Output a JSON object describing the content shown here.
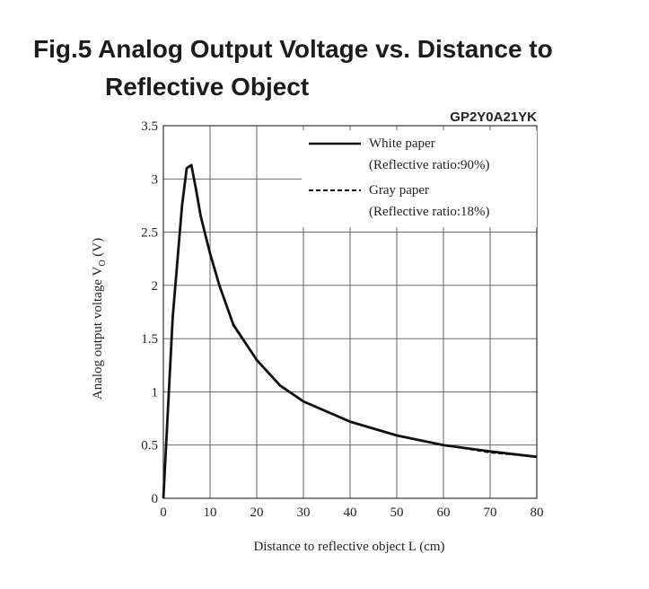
{
  "title_line1": "Fig.5 Analog Output Voltage vs. Distance to",
  "title_line2": "Reflective Object",
  "chart_data": {
    "type": "line",
    "model": "GP2Y0A21YK",
    "xlabel": "Distance to reflective object L (cm)",
    "ylabel_main": "Analog output voltage V",
    "ylabel_sub": "O",
    "ylabel_unit": " (V)",
    "xlim": [
      0,
      80
    ],
    "ylim": [
      0,
      3.5
    ],
    "xticks": [
      "0",
      "10",
      "20",
      "30",
      "40",
      "50",
      "60",
      "70",
      "80"
    ],
    "yticks": [
      "0",
      "0.5",
      "1",
      "1.5",
      "2",
      "2.5",
      "3",
      "3.5"
    ],
    "grid": true,
    "legend_position": "top-right",
    "series": [
      {
        "name": "White paper",
        "note": "(Reflective ratio:90%)",
        "style": "solid",
        "x": [
          0,
          2,
          4,
          5,
          6,
          7,
          8,
          10,
          12,
          15,
          20,
          25,
          30,
          40,
          50,
          60,
          70,
          80
        ],
        "y": [
          0,
          1.7,
          2.75,
          3.1,
          3.13,
          2.9,
          2.65,
          2.3,
          2.0,
          1.63,
          1.3,
          1.06,
          0.91,
          0.72,
          0.59,
          0.5,
          0.44,
          0.39
        ]
      },
      {
        "name": "Gray paper",
        "note": "(Reflective ratio:18%)",
        "style": "dashed",
        "x": [
          0,
          2,
          4,
          5,
          6,
          7,
          8,
          10,
          12,
          15,
          20,
          25,
          30,
          40,
          50,
          60,
          70,
          80
        ],
        "y": [
          0,
          1.7,
          2.75,
          3.1,
          3.14,
          2.9,
          2.65,
          2.3,
          2.0,
          1.62,
          1.3,
          1.06,
          0.91,
          0.72,
          0.59,
          0.5,
          0.43,
          0.39
        ]
      }
    ]
  }
}
